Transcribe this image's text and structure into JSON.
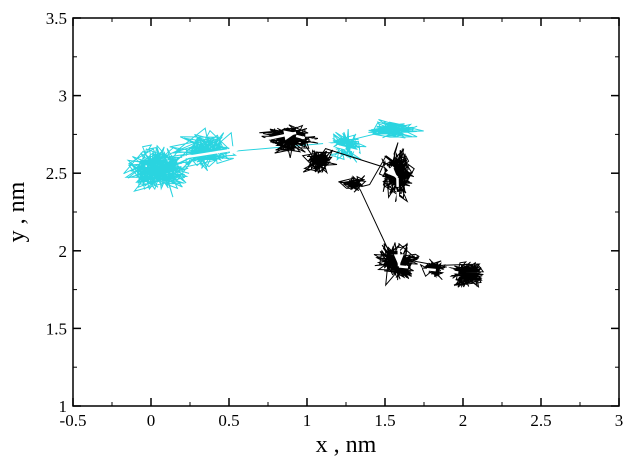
{
  "chart_data": {
    "type": "line",
    "title": "",
    "xlabel": "x , nm",
    "ylabel": "y , nm",
    "xlim": [
      -0.5,
      3
    ],
    "ylim": [
      1,
      3.5
    ],
    "x_ticks": [
      "-0.5",
      "0",
      "0.5",
      "1",
      "1.5",
      "2",
      "2.5",
      "3"
    ],
    "y_ticks": [
      "1",
      "1.5",
      "2",
      "2.5",
      "3",
      "3.5"
    ],
    "grid": false,
    "legend": "none",
    "series": [
      {
        "color": "#2ad4e0",
        "style": "random-walk trajectory",
        "clusters": [
          {
            "center": [
              0.05,
              2.52
            ],
            "spread": [
              0.17,
              0.13
            ],
            "points": 260
          },
          {
            "center": [
              0.35,
              2.65
            ],
            "spread": [
              0.15,
              0.11
            ],
            "points": 160
          },
          {
            "center": [
              1.25,
              2.68
            ],
            "spread": [
              0.11,
              0.08
            ],
            "points": 120
          },
          {
            "center": [
              1.55,
              2.78
            ],
            "spread": [
              0.15,
              0.05
            ],
            "points": 120
          }
        ]
      },
      {
        "color": "#000000",
        "style": "random-walk trajectory",
        "clusters": [
          {
            "center": [
              0.88,
              2.72
            ],
            "spread": [
              0.13,
              0.08
            ],
            "points": 220
          },
          {
            "center": [
              1.08,
              2.58
            ],
            "spread": [
              0.08,
              0.07
            ],
            "points": 120
          },
          {
            "center": [
              1.58,
              2.5
            ],
            "spread": [
              0.09,
              0.13
            ],
            "points": 200
          },
          {
            "center": [
              1.3,
              2.43
            ],
            "spread": [
              0.07,
              0.05
            ],
            "points": 70
          },
          {
            "center": [
              1.58,
              1.93
            ],
            "spread": [
              0.11,
              0.12
            ],
            "points": 220
          },
          {
            "center": [
              2.03,
              1.85
            ],
            "spread": [
              0.1,
              0.07
            ],
            "points": 200
          },
          {
            "center": [
              1.82,
              1.88
            ],
            "spread": [
              0.07,
              0.05
            ],
            "points": 70
          }
        ]
      }
    ],
    "arrows": [
      {
        "from": [
          0.2,
          2.6
        ],
        "to": [
          0.58,
          2.66
        ],
        "style": "solid",
        "color": "#ffffff"
      },
      {
        "from": [
          0.55,
          2.68
        ],
        "to": [
          0.93,
          2.76
        ],
        "style": "solid",
        "color": "#ffffff"
      },
      {
        "from": [
          0.93,
          2.74
        ],
        "to": [
          1.49,
          2.6
        ],
        "style": "dashed",
        "color": "#ffffff"
      },
      {
        "from": [
          1.5,
          2.55
        ],
        "to": [
          1.58,
          2.47
        ],
        "style": "dashed",
        "color": "#ffffff"
      },
      {
        "from": [
          1.58,
          2.47
        ],
        "to": [
          1.59,
          1.9
        ],
        "style": "dashed",
        "color": "#ffffff"
      },
      {
        "from": [
          1.59,
          1.9
        ],
        "to": [
          1.97,
          1.86
        ],
        "style": "dashed",
        "color": "#ffffff"
      }
    ]
  }
}
